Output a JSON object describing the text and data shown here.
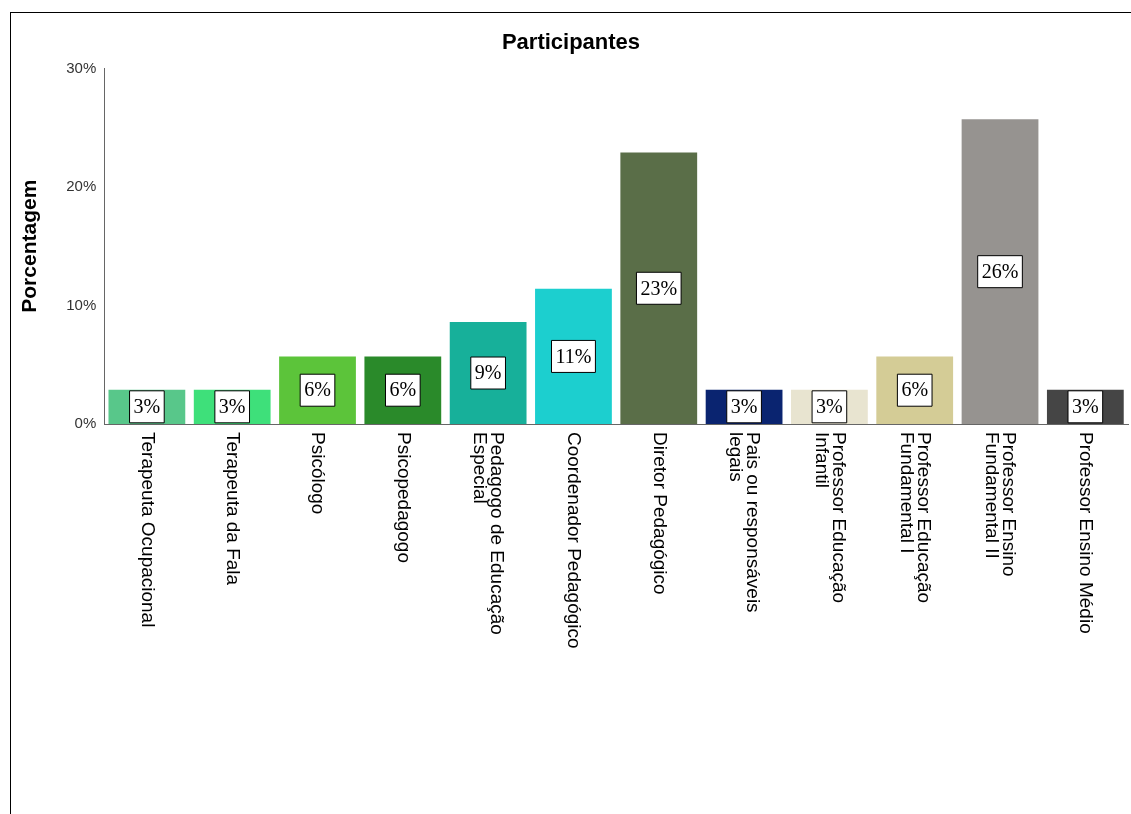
{
  "chart_data": {
    "type": "bar",
    "title": "Participantes",
    "ylabel": "Porcentagem",
    "categories": [
      "Terapeuta Ocupacional",
      "Terapeuta da Fala",
      "Psicólogo",
      "Psicopedagogo",
      "Pedagogo de Educação Especial",
      "Coordenador Pedagógico",
      "Diretor Pedagógico",
      "Pais ou responsáveis legais",
      "Professor Educação Infantil",
      "Professor Educação Fundamental I",
      "Professor Ensino Fundamental II",
      "Professor Ensino Médio"
    ],
    "values": [
      2.9,
      2.9,
      5.7,
      5.7,
      8.6,
      11.4,
      22.9,
      2.9,
      2.9,
      5.7,
      25.7,
      2.9
    ],
    "colors": [
      "#58c78a",
      "#3ee07a",
      "#5cc43a",
      "#2a8a2a",
      "#17b09a",
      "#1ccfcf",
      "#5a6e48",
      "#0a2470",
      "#e8e4d0",
      "#d4cc96",
      "#969390",
      "#454545"
    ],
    "value_labels": [
      "3%",
      "3%",
      "6%",
      "6%",
      "9%",
      "11%",
      "23%",
      "3%",
      "3%",
      "6%",
      "26%",
      "3%"
    ],
    "ylim": [
      0,
      30
    ],
    "yticks": [
      {
        "value": 0,
        "label": "0%"
      },
      {
        "value": 10,
        "label": "10%"
      },
      {
        "value": 20,
        "label": "20%"
      },
      {
        "value": 30,
        "label": "30%"
      }
    ],
    "grid": false,
    "legend": false
  }
}
